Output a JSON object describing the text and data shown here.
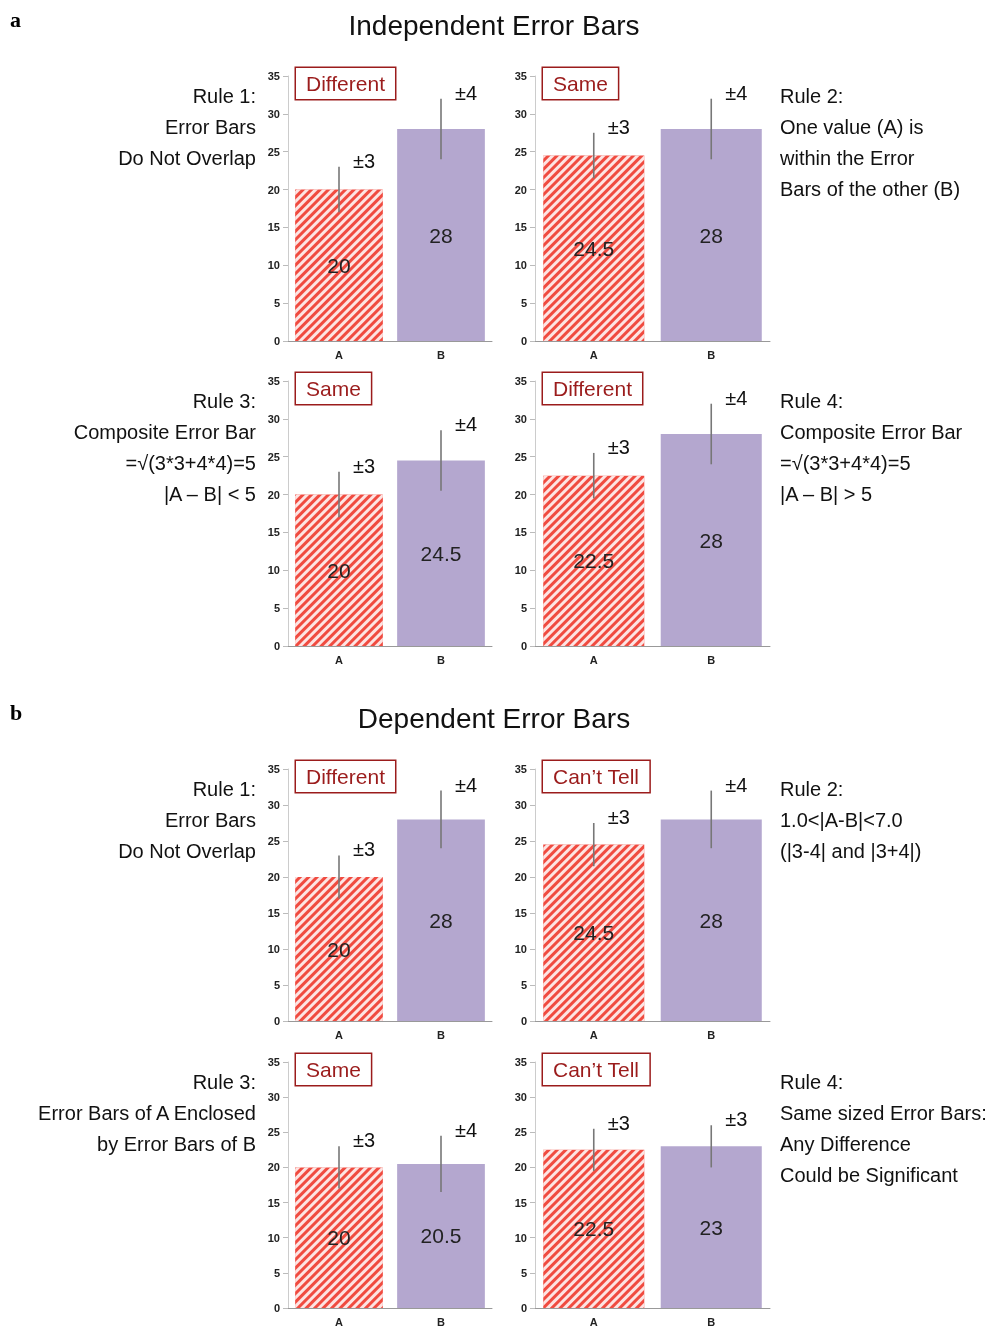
{
  "chart_data": [
    {
      "type": "bar",
      "title": "Independent Error Bars",
      "categories": [
        "A",
        "B"
      ],
      "values": [
        20,
        28
      ],
      "colors": [
        "#f04b40",
        "#b4a7cf"
      ],
      "errors": [
        3,
        4
      ],
      "ylim": [
        0,
        35
      ],
      "yticks": [
        0,
        5,
        10,
        15,
        20,
        25,
        30,
        35
      ],
      "data_labels": true,
      "annotations": [
        "a",
        "Different",
        "Rule 1:\nError Bars\nDo Not Overlap",
        {
          "text": "±3",
          "x": "A",
          "y": 23
        },
        {
          "text": "±4",
          "x": "B",
          "y": 32
        }
      ]
    },
    {
      "type": "bar",
      "categories": [
        "A",
        "B"
      ],
      "values": [
        24.5,
        28
      ],
      "colors": [
        "#f04b40",
        "#b4a7cf"
      ],
      "errors": [
        3,
        4
      ],
      "ylim": [
        0,
        35
      ],
      "yticks": [
        0,
        5,
        10,
        15,
        20,
        25,
        30,
        35
      ],
      "data_labels": true,
      "annotations": [
        "Same",
        "Rule 2:\nOne value (A) is\nwithin the Error\nBars of the other (B)",
        {
          "text": "±3",
          "x": "A",
          "y": 27.5
        },
        {
          "text": "±4",
          "x": "B",
          "y": 32
        }
      ]
    },
    {
      "type": "bar",
      "categories": [
        "A",
        "B"
      ],
      "values": [
        20,
        24.5
      ],
      "colors": [
        "#f04b40",
        "#b4a7cf"
      ],
      "errors": [
        3,
        4
      ],
      "ylim": [
        0,
        35
      ],
      "yticks": [
        0,
        5,
        10,
        15,
        20,
        25,
        30,
        35
      ],
      "data_labels": true,
      "annotations": [
        "Same",
        "Rule 3:\nComposite Error Bar\n=√(3*3+4*4)=5\n|A – B| < 5",
        {
          "text": "±3",
          "x": "A",
          "y": 23
        },
        {
          "text": "±4",
          "x": "B",
          "y": 28.5
        }
      ]
    },
    {
      "type": "bar",
      "categories": [
        "A",
        "B"
      ],
      "values": [
        22.5,
        28
      ],
      "colors": [
        "#f04b40",
        "#b4a7cf"
      ],
      "errors": [
        3,
        4
      ],
      "ylim": [
        0,
        35
      ],
      "yticks": [
        0,
        5,
        10,
        15,
        20,
        25,
        30,
        35
      ],
      "data_labels": true,
      "annotations": [
        "Different",
        "Rule 4:\nComposite Error Bar\n=√(3*3+4*4)=5\n|A – B| > 5",
        {
          "text": "±3",
          "x": "A",
          "y": 25.5
        },
        {
          "text": "±4",
          "x": "B",
          "y": 32
        }
      ]
    },
    {
      "type": "bar",
      "title": "Dependent Error Bars",
      "categories": [
        "A",
        "B"
      ],
      "values": [
        20,
        28
      ],
      "colors": [
        "#f04b40",
        "#b4a7cf"
      ],
      "errors": [
        3,
        4
      ],
      "ylim": [
        0,
        35
      ],
      "yticks": [
        0,
        5,
        10,
        15,
        20,
        25,
        30,
        35
      ],
      "data_labels": true,
      "annotations": [
        "b",
        "Different",
        "Rule 1:\nError Bars\nDo Not Overlap",
        {
          "text": "±3",
          "x": "A",
          "y": 23
        },
        {
          "text": "±4",
          "x": "B",
          "y": 32
        }
      ]
    },
    {
      "type": "bar",
      "categories": [
        "A",
        "B"
      ],
      "values": [
        24.5,
        28
      ],
      "colors": [
        "#f04b40",
        "#b4a7cf"
      ],
      "errors": [
        3,
        4
      ],
      "ylim": [
        0,
        35
      ],
      "yticks": [
        0,
        5,
        10,
        15,
        20,
        25,
        30,
        35
      ],
      "data_labels": true,
      "annotations": [
        "Can’t Tell",
        "Rule 2:\n1.0<|A-B|<7.0\n(|3-4| and |3+4|)",
        {
          "text": "±3",
          "x": "A",
          "y": 27.5
        },
        {
          "text": "±4",
          "x": "B",
          "y": 32
        }
      ]
    },
    {
      "type": "bar",
      "categories": [
        "A",
        "B"
      ],
      "values": [
        20,
        20.5
      ],
      "colors": [
        "#f04b40",
        "#b4a7cf"
      ],
      "errors": [
        3,
        4
      ],
      "ylim": [
        0,
        35
      ],
      "yticks": [
        0,
        5,
        10,
        15,
        20,
        25,
        30,
        35
      ],
      "data_labels": true,
      "annotations": [
        "Same",
        "Rule 3:\nError Bars of A Enclosed\nby Error Bars of B",
        {
          "text": "±3",
          "x": "A",
          "y": 23
        },
        {
          "text": "±4",
          "x": "B",
          "y": 24.5
        }
      ]
    },
    {
      "type": "bar",
      "categories": [
        "A",
        "B"
      ],
      "values": [
        22.5,
        23
      ],
      "colors": [
        "#f04b40",
        "#b4a7cf"
      ],
      "errors": [
        3,
        3
      ],
      "ylim": [
        0,
        35
      ],
      "yticks": [
        0,
        5,
        10,
        15,
        20,
        25,
        30,
        35
      ],
      "data_labels": true,
      "annotations": [
        "Can’t Tell",
        "Rule 4:\nSame sized Error Bars:\nAny Difference\nCould be Significant",
        {
          "text": "±3",
          "x": "A",
          "y": 25.5
        },
        {
          "text": "±3",
          "x": "B",
          "y": 26
        }
      ]
    }
  ]
}
